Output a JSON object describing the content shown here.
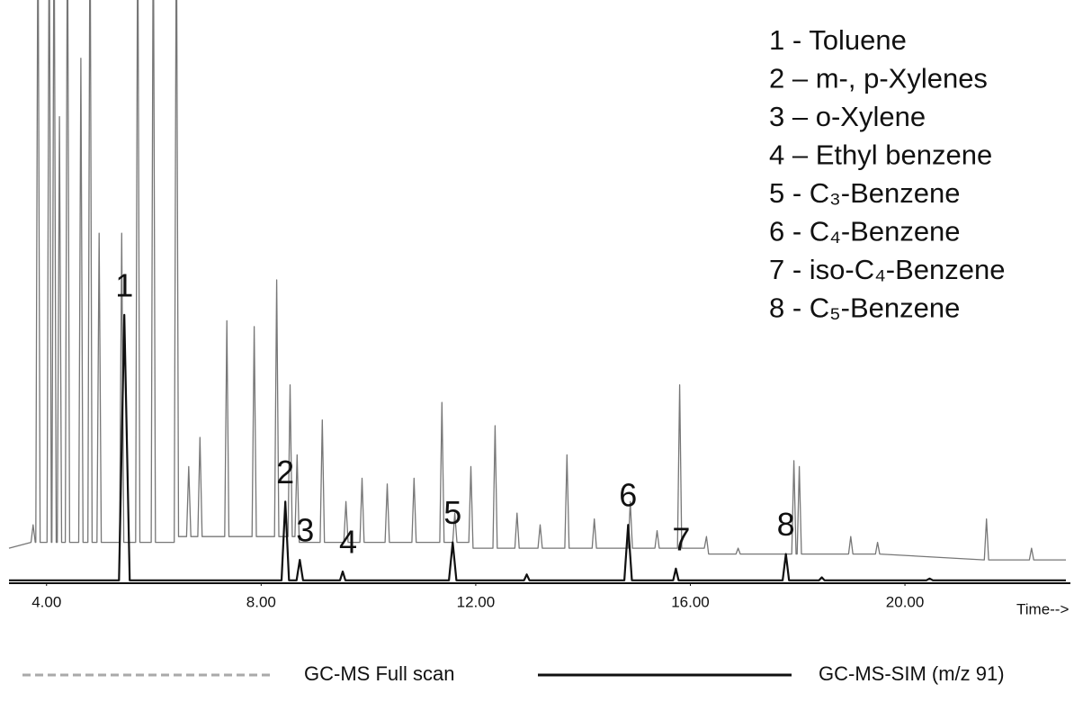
{
  "chart_data": {
    "type": "line",
    "x_label": "Time-->",
    "xlim": [
      3.3,
      23
    ],
    "ylim": [
      0,
      100
    ],
    "xticks": [
      {
        "value": 4,
        "label": "4.00"
      },
      {
        "value": 8,
        "label": "8.00"
      },
      {
        "value": 12,
        "label": "12.00"
      },
      {
        "value": 16,
        "label": "16.00"
      },
      {
        "value": 20,
        "label": "20.00"
      }
    ],
    "series": [
      {
        "name": "GC-MS Full scan",
        "color": "#777777",
        "x": [
          3.3,
          3.71,
          3.75,
          3.79,
          3.8,
          3.84,
          3.88,
          4.01,
          4.05,
          4.09,
          4.1,
          4.14,
          4.18,
          4.2,
          4.24,
          4.28,
          4.35,
          4.39,
          4.43,
          4.6,
          4.64,
          4.68,
          4.77,
          4.81,
          4.85,
          4.94,
          4.98,
          5.02,
          5.36,
          5.4,
          5.44,
          5.66,
          5.7,
          5.74,
          5.95,
          5.99,
          6.03,
          6.38,
          6.42,
          6.46,
          6.61,
          6.65,
          6.69,
          6.82,
          6.86,
          6.9,
          7.32,
          7.36,
          7.4,
          7.83,
          7.87,
          7.91,
          8.25,
          8.29,
          8.33,
          8.5,
          8.54,
          8.58,
          8.63,
          8.67,
          8.71,
          9.1,
          9.14,
          9.18,
          9.54,
          9.58,
          9.62,
          9.84,
          9.88,
          9.92,
          10.31,
          10.35,
          10.39,
          10.81,
          10.85,
          10.89,
          11.33,
          11.37,
          11.41,
          11.57,
          11.61,
          11.65,
          11.87,
          11.91,
          11.95,
          12.32,
          12.36,
          12.4,
          12.73,
          12.77,
          12.81,
          13.16,
          13.2,
          13.24,
          13.66,
          13.7,
          13.74,
          14.17,
          14.21,
          14.25,
          14.84,
          14.88,
          14.92,
          15.34,
          15.38,
          15.42,
          15.76,
          15.8,
          15.84,
          16.26,
          16.3,
          16.34,
          16.85,
          16.89,
          16.93,
          17.89,
          17.93,
          17.97,
          17.99,
          18.03,
          18.07,
          18.95,
          18.99,
          19.03,
          19.45,
          19.49,
          19.53,
          21.48,
          21.52,
          21.56,
          22.32,
          22.36,
          22.4,
          23
        ],
        "values": [
          6,
          7,
          10,
          7,
          7,
          120,
          7,
          7,
          120,
          7,
          7,
          120,
          7,
          7,
          80,
          7,
          7,
          120,
          7,
          7,
          90,
          7,
          7,
          120,
          7,
          7,
          60,
          7,
          7,
          60,
          7,
          7,
          120,
          7,
          7,
          120,
          7,
          7,
          120,
          8,
          8,
          20,
          8,
          8,
          25,
          8,
          8,
          45,
          8,
          8,
          44,
          8,
          8,
          52,
          8,
          8,
          34,
          8,
          8,
          22,
          7,
          7,
          28,
          7,
          7,
          14,
          7,
          7,
          18,
          7,
          7,
          17,
          7,
          7,
          18,
          7,
          7,
          31,
          7,
          7,
          12,
          7,
          7,
          20,
          6,
          6,
          27,
          6,
          6,
          12,
          6,
          6,
          10,
          6,
          6,
          22,
          6,
          6,
          11,
          6,
          6,
          14,
          6,
          6,
          9,
          6,
          6,
          34,
          6,
          6,
          8,
          5,
          5,
          6,
          5,
          5,
          21,
          5,
          5,
          20,
          5,
          5,
          8,
          5,
          5,
          7,
          5,
          4,
          11,
          4,
          4,
          6,
          4,
          4
        ]
      },
      {
        "name": "GC-MS-SIM (m/z 91)",
        "color": "#111111",
        "x": [
          3.3,
          5.35,
          5.45,
          5.55,
          8.38,
          8.45,
          8.52,
          8.66,
          8.72,
          8.78,
          9.47,
          9.52,
          9.57,
          11.5,
          11.57,
          11.64,
          12.9,
          12.95,
          13.0,
          14.77,
          14.84,
          14.91,
          15.68,
          15.73,
          15.78,
          17.72,
          17.78,
          17.84,
          18.4,
          18.45,
          18.5,
          20.4,
          20.46,
          20.52,
          23
        ],
        "values": [
          0.5,
          0.5,
          46,
          0.5,
          0.5,
          14,
          0.5,
          0.5,
          4,
          0.5,
          0.5,
          2,
          0.5,
          0.5,
          7,
          0.5,
          0.5,
          1.5,
          0.5,
          0.5,
          10,
          0.5,
          0.5,
          2.5,
          0.5,
          0.5,
          5,
          0.5,
          0.5,
          1,
          0.5,
          0.5,
          0.8,
          0.5,
          0.5
        ]
      }
    ],
    "peak_labels": [
      "1",
      "2",
      "3",
      "4",
      "5",
      "6",
      "7",
      "8"
    ],
    "annotations": [
      "1 - Toluene",
      "2 – m-, p-Xylenes",
      "3 – o-Xylene",
      "4 – Ethyl benzene",
      "5 - C₃-Benzene",
      "6 - C₄-Benzene",
      "7 - iso-C₄-Benzene",
      "8 - C₅-Benzene"
    ]
  }
}
